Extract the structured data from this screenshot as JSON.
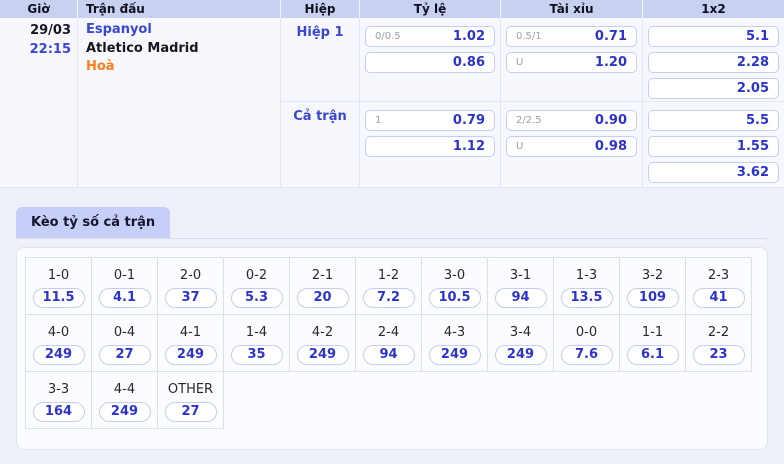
{
  "table": {
    "headers": {
      "gio": "Giờ",
      "tran_dau": "Trận đấu",
      "hiep": "Hiệp",
      "ty_le": "Tỷ lệ",
      "tai_xiu": "Tài xỉu",
      "one_x_two": "1x2"
    },
    "match": {
      "date": "29/03",
      "time": "22:15",
      "home": "Espanyol",
      "away": "Atletico Madrid",
      "result": "Hoà"
    },
    "sections": [
      {
        "label": "Hiệp 1",
        "ty_le": [
          {
            "hcp": "0/0.5",
            "odd": "1.02"
          },
          {
            "hcp": "",
            "odd": "0.86"
          }
        ],
        "tai_xiu": [
          {
            "hcp": "0.5/1",
            "odd": "0.71"
          },
          {
            "hcp": "U",
            "odd": "1.20"
          }
        ],
        "one_x_two": [
          "5.1",
          "2.28",
          "2.05"
        ]
      },
      {
        "label": "Cả trận",
        "ty_le": [
          {
            "hcp": "1",
            "odd": "0.79"
          },
          {
            "hcp": "",
            "odd": "1.12"
          }
        ],
        "tai_xiu": [
          {
            "hcp": "2/2.5",
            "odd": "0.90"
          },
          {
            "hcp": "U",
            "odd": "0.98"
          }
        ],
        "one_x_two": [
          "5.5",
          "1.55",
          "3.62"
        ]
      }
    ]
  },
  "score_section": {
    "tab_label": "Kèo tỷ số cả trận",
    "rows": [
      [
        {
          "score": "1-0",
          "odd": "11.5"
        },
        {
          "score": "0-1",
          "odd": "4.1"
        },
        {
          "score": "2-0",
          "odd": "37"
        },
        {
          "score": "0-2",
          "odd": "5.3"
        },
        {
          "score": "2-1",
          "odd": "20"
        },
        {
          "score": "1-2",
          "odd": "7.2"
        },
        {
          "score": "3-0",
          "odd": "10.5"
        },
        {
          "score": "3-1",
          "odd": "94"
        },
        {
          "score": "1-3",
          "odd": "13.5"
        },
        {
          "score": "3-2",
          "odd": "109"
        },
        {
          "score": "2-3",
          "odd": "41"
        }
      ],
      [
        {
          "score": "4-0",
          "odd": "249"
        },
        {
          "score": "0-4",
          "odd": "27"
        },
        {
          "score": "4-1",
          "odd": "249"
        },
        {
          "score": "1-4",
          "odd": "35"
        },
        {
          "score": "4-2",
          "odd": "249"
        },
        {
          "score": "2-4",
          "odd": "94"
        },
        {
          "score": "4-3",
          "odd": "249"
        },
        {
          "score": "3-4",
          "odd": "249"
        },
        {
          "score": "0-0",
          "odd": "7.6"
        },
        {
          "score": "1-1",
          "odd": "6.1"
        },
        {
          "score": "2-2",
          "odd": "23"
        }
      ],
      [
        {
          "score": "3-3",
          "odd": "164"
        },
        {
          "score": "4-4",
          "odd": "249"
        },
        {
          "score": "OTHER",
          "odd": "27"
        }
      ]
    ]
  },
  "colors": {
    "header_bg": "#c9d1f1",
    "body_bg": "#f6f8fe",
    "page_bg": "#eef1f9",
    "odd_blue": "#2c34cc",
    "label_blue": "#3947d2",
    "result_orange": "#ff7b1c",
    "box_border": "#c6cdf2",
    "tab_bg": "#c7cef7"
  }
}
